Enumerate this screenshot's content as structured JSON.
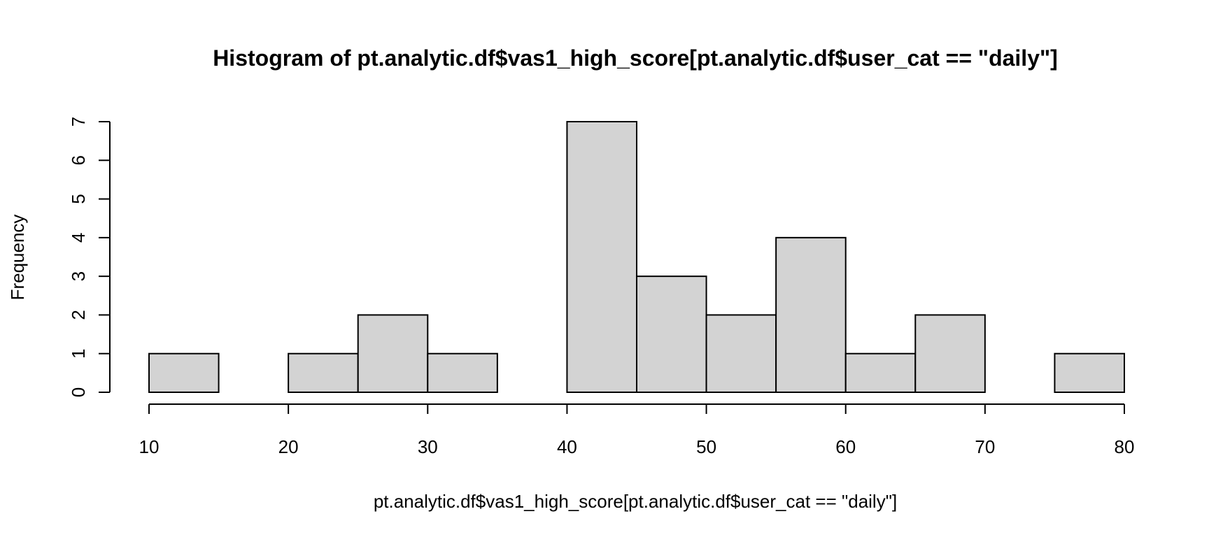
{
  "chart_data": {
    "type": "bar",
    "title": "Histogram of pt.analytic.df$vas1_high_score[pt.analytic.df$user_cat == \"daily\"]",
    "xlabel": "pt.analytic.df$vas1_high_score[pt.analytic.df$user_cat == \"daily\"]",
    "ylabel": "Frequency",
    "bin_edges": [
      10,
      15,
      20,
      25,
      30,
      35,
      40,
      45,
      50,
      55,
      60,
      65,
      70,
      75,
      80
    ],
    "values": [
      1,
      0,
      1,
      2,
      1,
      0,
      7,
      3,
      2,
      4,
      1,
      2,
      0,
      1
    ],
    "xlim": [
      10,
      80
    ],
    "ylim": [
      0,
      7
    ],
    "x_ticks": [
      10,
      20,
      30,
      40,
      50,
      60,
      70,
      80
    ],
    "y_ticks": [
      0,
      1,
      2,
      3,
      4,
      5,
      6,
      7
    ],
    "grid": false,
    "colors": {
      "bar_fill": "#d3d3d3",
      "bar_stroke": "#000000"
    }
  }
}
